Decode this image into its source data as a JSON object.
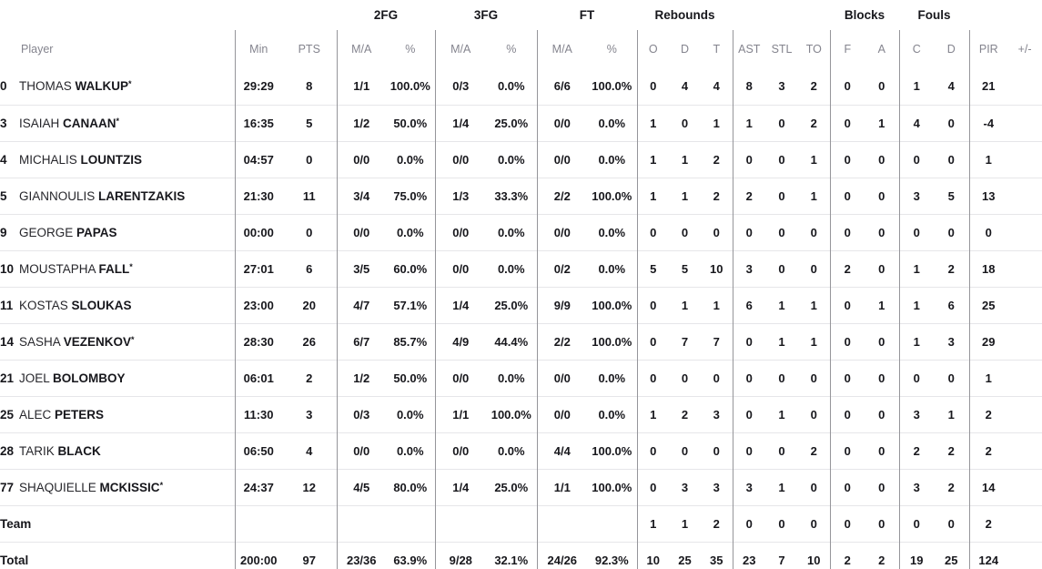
{
  "table": {
    "group_headers": [
      {
        "label": "2FG"
      },
      {
        "label": "3FG"
      },
      {
        "label": "FT"
      },
      {
        "label": "Rebounds"
      },
      {
        "label": "Blocks"
      },
      {
        "label": "Fouls"
      }
    ],
    "columns": [
      "Player",
      "Min",
      "PTS",
      "M/A",
      "%",
      "M/A",
      "%",
      "M/A",
      "%",
      "O",
      "D",
      "T",
      "AST",
      "STL",
      "TO",
      "F",
      "A",
      "C",
      "D",
      "PIR",
      "+/-"
    ],
    "rows": [
      {
        "type": "player",
        "num": "0",
        "first": "THOMAS",
        "last": "WALKUP",
        "starter": true,
        "stats": [
          "29:29",
          "8",
          "1/1",
          "100.0%",
          "0/3",
          "0.0%",
          "6/6",
          "100.0%",
          "0",
          "4",
          "4",
          "8",
          "3",
          "2",
          "0",
          "0",
          "1",
          "4",
          "21",
          ""
        ]
      },
      {
        "type": "player",
        "num": "3",
        "first": "ISAIAH",
        "last": "CANAAN",
        "starter": true,
        "stats": [
          "16:35",
          "5",
          "1/2",
          "50.0%",
          "1/4",
          "25.0%",
          "0/0",
          "0.0%",
          "1",
          "0",
          "1",
          "1",
          "0",
          "2",
          "0",
          "1",
          "4",
          "0",
          "-4",
          ""
        ]
      },
      {
        "type": "player",
        "num": "4",
        "first": "MICHALIS",
        "last": "LOUNTZIS",
        "starter": false,
        "stats": [
          "04:57",
          "0",
          "0/0",
          "0.0%",
          "0/0",
          "0.0%",
          "0/0",
          "0.0%",
          "1",
          "1",
          "2",
          "0",
          "0",
          "1",
          "0",
          "0",
          "0",
          "0",
          "1",
          ""
        ]
      },
      {
        "type": "player",
        "num": "5",
        "first": "GIANNOULIS",
        "last": "LARENTZAKIS",
        "starter": false,
        "stats": [
          "21:30",
          "11",
          "3/4",
          "75.0%",
          "1/3",
          "33.3%",
          "2/2",
          "100.0%",
          "1",
          "1",
          "2",
          "2",
          "0",
          "1",
          "0",
          "0",
          "3",
          "5",
          "13",
          ""
        ]
      },
      {
        "type": "player",
        "num": "9",
        "first": "GEORGE",
        "last": "PAPAS",
        "starter": false,
        "stats": [
          "00:00",
          "0",
          "0/0",
          "0.0%",
          "0/0",
          "0.0%",
          "0/0",
          "0.0%",
          "0",
          "0",
          "0",
          "0",
          "0",
          "0",
          "0",
          "0",
          "0",
          "0",
          "0",
          ""
        ]
      },
      {
        "type": "player",
        "num": "10",
        "first": "MOUSTAPHA",
        "last": "FALL",
        "starter": true,
        "stats": [
          "27:01",
          "6",
          "3/5",
          "60.0%",
          "0/0",
          "0.0%",
          "0/2",
          "0.0%",
          "5",
          "5",
          "10",
          "3",
          "0",
          "0",
          "2",
          "0",
          "1",
          "2",
          "18",
          ""
        ]
      },
      {
        "type": "player",
        "num": "11",
        "first": "KOSTAS",
        "last": "SLOUKAS",
        "starter": false,
        "stats": [
          "23:00",
          "20",
          "4/7",
          "57.1%",
          "1/4",
          "25.0%",
          "9/9",
          "100.0%",
          "0",
          "1",
          "1",
          "6",
          "1",
          "1",
          "0",
          "1",
          "1",
          "6",
          "25",
          ""
        ]
      },
      {
        "type": "player",
        "num": "14",
        "first": "SASHA",
        "last": "VEZENKOV",
        "starter": true,
        "stats": [
          "28:30",
          "26",
          "6/7",
          "85.7%",
          "4/9",
          "44.4%",
          "2/2",
          "100.0%",
          "0",
          "7",
          "7",
          "0",
          "1",
          "1",
          "0",
          "0",
          "1",
          "3",
          "29",
          ""
        ]
      },
      {
        "type": "player",
        "num": "21",
        "first": "JOEL",
        "last": "BOLOMBOY",
        "starter": false,
        "stats": [
          "06:01",
          "2",
          "1/2",
          "50.0%",
          "0/0",
          "0.0%",
          "0/0",
          "0.0%",
          "0",
          "0",
          "0",
          "0",
          "0",
          "0",
          "0",
          "0",
          "0",
          "0",
          "1",
          ""
        ]
      },
      {
        "type": "player",
        "num": "25",
        "first": "ALEC",
        "last": "PETERS",
        "starter": false,
        "stats": [
          "11:30",
          "3",
          "0/3",
          "0.0%",
          "1/1",
          "100.0%",
          "0/0",
          "0.0%",
          "1",
          "2",
          "3",
          "0",
          "1",
          "0",
          "0",
          "0",
          "3",
          "1",
          "2",
          ""
        ]
      },
      {
        "type": "player",
        "num": "28",
        "first": "TARIK",
        "last": "BLACK",
        "starter": false,
        "stats": [
          "06:50",
          "4",
          "0/0",
          "0.0%",
          "0/0",
          "0.0%",
          "4/4",
          "100.0%",
          "0",
          "0",
          "0",
          "0",
          "0",
          "2",
          "0",
          "0",
          "2",
          "2",
          "2",
          ""
        ]
      },
      {
        "type": "player",
        "num": "77",
        "first": "SHAQUIELLE",
        "last": "MCKISSIC",
        "starter": true,
        "stats": [
          "24:37",
          "12",
          "4/5",
          "80.0%",
          "1/4",
          "25.0%",
          "1/1",
          "100.0%",
          "0",
          "3",
          "3",
          "3",
          "1",
          "0",
          "0",
          "0",
          "3",
          "2",
          "14",
          ""
        ]
      },
      {
        "type": "team",
        "label": "Team",
        "stats": [
          "",
          "",
          "",
          "",
          "",
          "",
          "",
          "",
          "1",
          "1",
          "2",
          "0",
          "0",
          "0",
          "0",
          "0",
          "0",
          "0",
          "2",
          ""
        ]
      },
      {
        "type": "total",
        "label": "Total",
        "stats": [
          "200:00",
          "97",
          "23/36",
          "63.9%",
          "9/28",
          "32.1%",
          "24/26",
          "92.3%",
          "10",
          "25",
          "35",
          "23",
          "7",
          "10",
          "2",
          "2",
          "19",
          "25",
          "124",
          ""
        ]
      }
    ]
  }
}
